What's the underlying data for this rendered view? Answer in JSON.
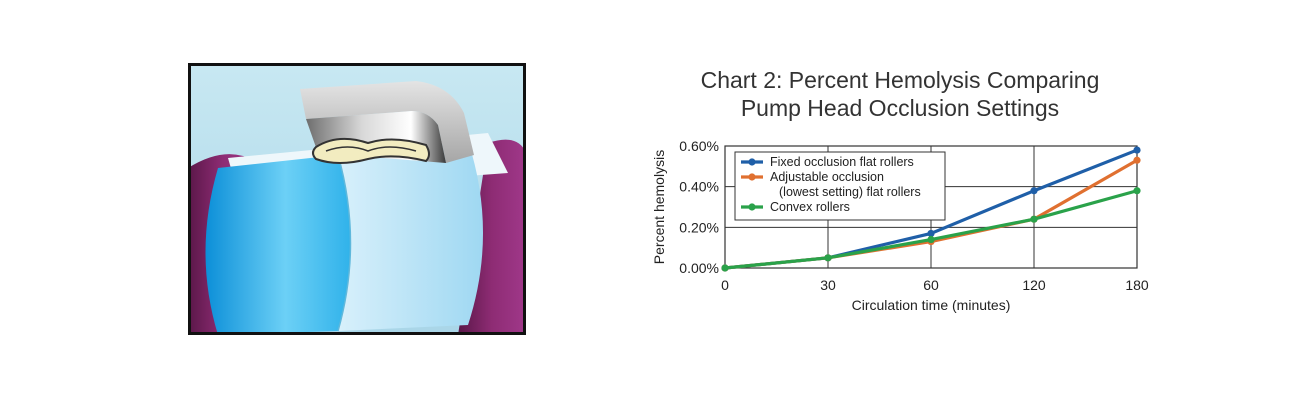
{
  "chart_data": {
    "type": "line",
    "title_lines": [
      "Chart 2: Percent Hemolysis Comparing",
      "Pump Head Occlusion Settings"
    ],
    "xlabel": "Circulation time (minutes)",
    "ylabel": "Percent hemolysis",
    "categories": [
      "0",
      "30",
      "60",
      "120",
      "180"
    ],
    "y_ticks": [
      "0.00%",
      "0.20%",
      "0.40%",
      "0.60%"
    ],
    "ylim": [
      0,
      0.6
    ],
    "grid": true,
    "legend_position": "top-left",
    "series": [
      {
        "name": "Fixed occlusion flat rollers",
        "legend_lines": [
          "Fixed occlusion flat rollers"
        ],
        "color": "#1f5fa8",
        "values": [
          0.0,
          0.05,
          0.17,
          0.38,
          0.58
        ]
      },
      {
        "name": "Adjustable occlusion (lowest setting) flat rollers",
        "legend_lines": [
          "Adjustable occlusion",
          "(lowest setting) flat rollers"
        ],
        "color": "#e07030",
        "values": [
          0.0,
          0.05,
          0.13,
          0.24,
          0.53
        ]
      },
      {
        "name": "Convex rollers",
        "legend_lines": [
          "Convex rollers"
        ],
        "color": "#2aa24a",
        "values": [
          0.0,
          0.05,
          0.14,
          0.24,
          0.38
        ]
      }
    ]
  }
}
